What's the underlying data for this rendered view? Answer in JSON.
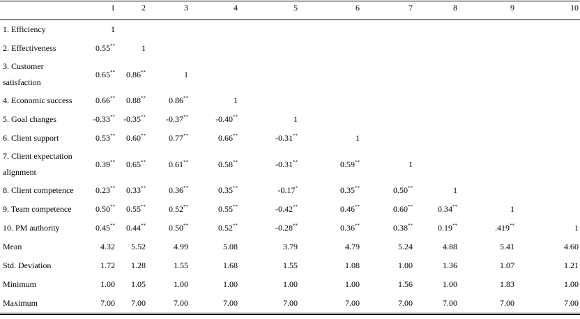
{
  "table": {
    "columns": [
      "1",
      "2",
      "3",
      "4",
      "5",
      "6",
      "7",
      "8",
      "9",
      "10"
    ],
    "rows": [
      {
        "label": "1. Efficiency",
        "cells": [
          [
            "1"
          ]
        ]
      },
      {
        "label": "2. Effectiveness",
        "cells": [
          [
            "0.55",
            "**"
          ],
          [
            "1"
          ]
        ]
      },
      {
        "label": "3. Customer satisfaction",
        "cells": [
          [
            "0.65",
            "**"
          ],
          [
            "0.86",
            "**"
          ],
          [
            "1"
          ]
        ]
      },
      {
        "label": "4. Economic success",
        "cells": [
          [
            "0.66",
            "**"
          ],
          [
            "0.88",
            "**"
          ],
          [
            "0.86",
            "**"
          ],
          [
            "1"
          ]
        ]
      },
      {
        "label": "5. Goal changes",
        "cells": [
          [
            "-0.33",
            "**"
          ],
          [
            "-0.35",
            "**"
          ],
          [
            "-0.37",
            "**"
          ],
          [
            "-0.40",
            "**"
          ],
          [
            "1"
          ]
        ]
      },
      {
        "label": "6. Client support",
        "cells": [
          [
            "0.53",
            "**"
          ],
          [
            "0.60",
            "**"
          ],
          [
            "0.77",
            "**"
          ],
          [
            "0.66",
            "**"
          ],
          [
            "-0.31",
            "**"
          ],
          [
            "1"
          ]
        ]
      },
      {
        "label": "7. Client expectation alignment",
        "cells": [
          [
            "0.39",
            "**"
          ],
          [
            "0.65",
            "**"
          ],
          [
            "0.61",
            "**"
          ],
          [
            "0.58",
            "**"
          ],
          [
            "-0.31",
            "**"
          ],
          [
            "0.59",
            "**"
          ],
          [
            "1"
          ]
        ]
      },
      {
        "label": "8. Client competence",
        "cells": [
          [
            "0.23",
            "**"
          ],
          [
            "0.33",
            "**"
          ],
          [
            "0.36",
            "**"
          ],
          [
            "0.35",
            "**"
          ],
          [
            "-0.17",
            "*"
          ],
          [
            "0.35",
            "**"
          ],
          [
            "0.50",
            "**"
          ],
          [
            "1"
          ]
        ]
      },
      {
        "label": "9. Team competence",
        "cells": [
          [
            "0.50",
            "**"
          ],
          [
            "0.55",
            "**"
          ],
          [
            "0.52",
            "**"
          ],
          [
            "0.55",
            "**"
          ],
          [
            "-0.42",
            "**"
          ],
          [
            "0.46",
            "**"
          ],
          [
            "0.60",
            "**"
          ],
          [
            "0.34",
            "**"
          ],
          [
            "1"
          ]
        ]
      },
      {
        "label": "10. PM authority",
        "cells": [
          [
            "0.45",
            "**"
          ],
          [
            "0.44",
            "**"
          ],
          [
            "0.50",
            "**"
          ],
          [
            "0.52",
            "**"
          ],
          [
            "-0.28",
            "**"
          ],
          [
            "0.36",
            "**"
          ],
          [
            "0.38",
            "**"
          ],
          [
            "0.19",
            "**"
          ],
          [
            ".419",
            "**"
          ],
          [
            "1"
          ]
        ]
      },
      {
        "label": "Mean",
        "cells": [
          [
            "4.32"
          ],
          [
            "5.52"
          ],
          [
            "4.99"
          ],
          [
            "5.08"
          ],
          [
            "3.79"
          ],
          [
            "4.79"
          ],
          [
            "5.24"
          ],
          [
            "4.88"
          ],
          [
            "5.41"
          ],
          [
            "4.60"
          ]
        ]
      },
      {
        "label": "Std. Deviation",
        "cells": [
          [
            "1.72"
          ],
          [
            "1.28"
          ],
          [
            "1.55"
          ],
          [
            "1.68"
          ],
          [
            "1.55"
          ],
          [
            "1.08"
          ],
          [
            "1.00"
          ],
          [
            "1.36"
          ],
          [
            "1.07"
          ],
          [
            "1.21"
          ]
        ]
      },
      {
        "label": "Minimum",
        "cells": [
          [
            "1.00"
          ],
          [
            "1.05"
          ],
          [
            "1.00"
          ],
          [
            "1.00"
          ],
          [
            "1.00"
          ],
          [
            "1.00"
          ],
          [
            "1.56"
          ],
          [
            "1.00"
          ],
          [
            "1.83"
          ],
          [
            "1.00"
          ]
        ]
      },
      {
        "label": "Maximum",
        "cells": [
          [
            "7.00"
          ],
          [
            "7.00"
          ],
          [
            "7.00"
          ],
          [
            "7.00"
          ],
          [
            "7.00"
          ],
          [
            "7.00"
          ],
          [
            "7.00"
          ],
          [
            "7.00"
          ],
          [
            "7.00"
          ],
          [
            "7.00"
          ]
        ]
      }
    ]
  }
}
